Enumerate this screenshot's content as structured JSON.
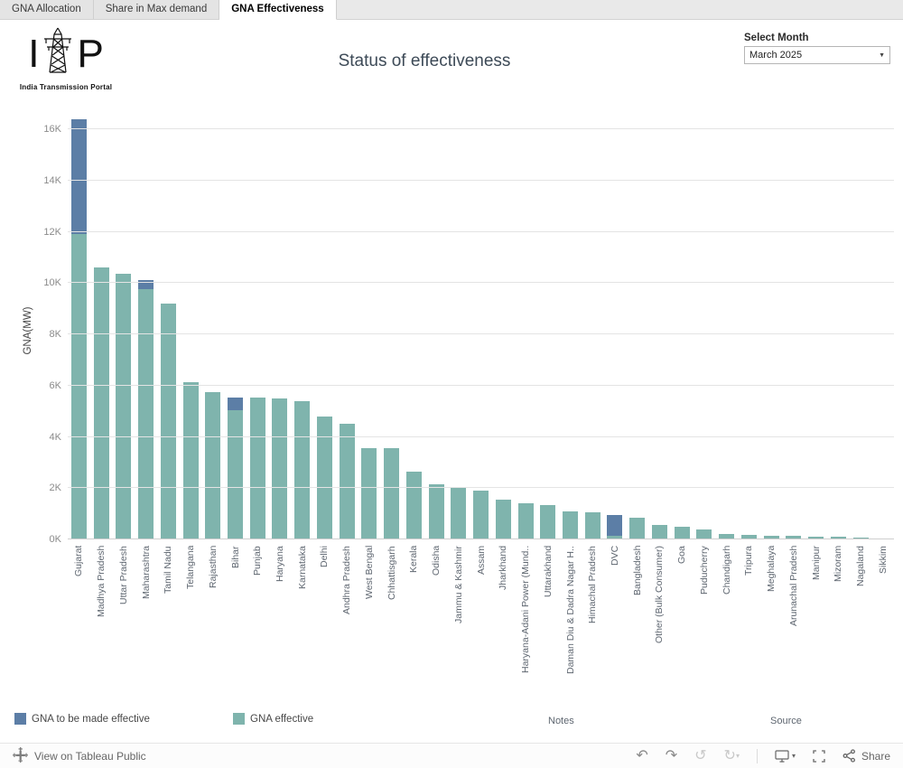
{
  "tabs": [
    {
      "label": "GNA Allocation",
      "active": false
    },
    {
      "label": "Share in Max demand",
      "active": false
    },
    {
      "label": "GNA Effectiveness",
      "active": true
    }
  ],
  "header": {
    "title": "Status of effectiveness",
    "logo": {
      "left_letter": "I",
      "right_letter": "P",
      "caption": "India Transmission Portal"
    },
    "month_filter": {
      "label": "Select Month",
      "value": "March 2025",
      "caret": "▼"
    }
  },
  "chart_data": {
    "type": "bar",
    "stacked": true,
    "title": "Status of effectiveness",
    "xlabel": "",
    "ylabel": "GNA(MW)",
    "ylim": [
      0,
      16460
    ],
    "grid": true,
    "legend_position": "bottom-left",
    "yticks": [
      {
        "label": "0K",
        "value": 0
      },
      {
        "label": "2K",
        "value": 2000
      },
      {
        "label": "4K",
        "value": 4000
      },
      {
        "label": "6K",
        "value": 6000
      },
      {
        "label": "8K",
        "value": 8000
      },
      {
        "label": "10K",
        "value": 10000
      },
      {
        "label": "12K",
        "value": 12000
      },
      {
        "label": "14K",
        "value": 14000
      },
      {
        "label": "16K",
        "value": 16000
      }
    ],
    "categories": [
      "Gujarat",
      "Madhya Pradesh",
      "Uttar Pradesh",
      "Maharashtra",
      "Tamil Nadu",
      "Telangana",
      "Rajasthan",
      "Bihar",
      "Punjab",
      "Haryana",
      "Karnataka",
      "Delhi",
      "Andhra Pradesh",
      "West Bengal",
      "Chhattisgarh",
      "Kerala",
      "Odisha",
      "Jammu & Kashmir",
      "Assam",
      "Jharkhand",
      "Haryana-Adani Power (Mund..",
      "Uttarakhand",
      "Daman Diu & Dadra Nagar H..",
      "Himachal Pradesh",
      "DVC",
      "Bangladesh",
      "Other (Bulk Consumer)",
      "Goa",
      "Puducherry",
      "Chandigarh",
      "Tripura",
      "Meghalaya",
      "Arunachal Pradesh",
      "Manipur",
      "Mizoram",
      "Nagaland",
      "Sikkim"
    ],
    "series": [
      {
        "name": "GNA effective",
        "color": "#7fb4ad",
        "values": [
          11900,
          10600,
          10350,
          9750,
          9200,
          6150,
          5750,
          5050,
          5550,
          5500,
          5400,
          4800,
          4500,
          3550,
          3550,
          2650,
          2150,
          2000,
          1900,
          1550,
          1400,
          1350,
          1100,
          1050,
          150,
          850,
          550,
          500,
          400,
          200,
          180,
          150,
          130,
          100,
          100,
          80,
          50
        ]
      },
      {
        "name": "GNA to be made effective",
        "color": "#5c7ea6",
        "values": [
          4500,
          0,
          0,
          350,
          0,
          0,
          0,
          500,
          0,
          0,
          0,
          0,
          0,
          0,
          0,
          0,
          0,
          0,
          0,
          0,
          0,
          0,
          0,
          0,
          800,
          0,
          0,
          0,
          0,
          0,
          0,
          0,
          0,
          0,
          0,
          0,
          0
        ]
      }
    ]
  },
  "legend": [
    {
      "label": "GNA to be made effective",
      "color": "#5c7ea6"
    },
    {
      "label": "GNA effective",
      "color": "#7fb4ad"
    }
  ],
  "footer": {
    "notes": "Notes",
    "source": "Source"
  },
  "toolbar": {
    "view_label": "View on Tableau Public",
    "undo_icon": "↶",
    "redo_icon": "↷",
    "replay_icon": "↺",
    "refresh_icon": "↻",
    "caret_icon": "▾",
    "share_label": "Share"
  },
  "colors": {
    "effective": "#7fb4ad",
    "to_be_effective": "#5c7ea6",
    "accent_title": "#3d4a57"
  }
}
